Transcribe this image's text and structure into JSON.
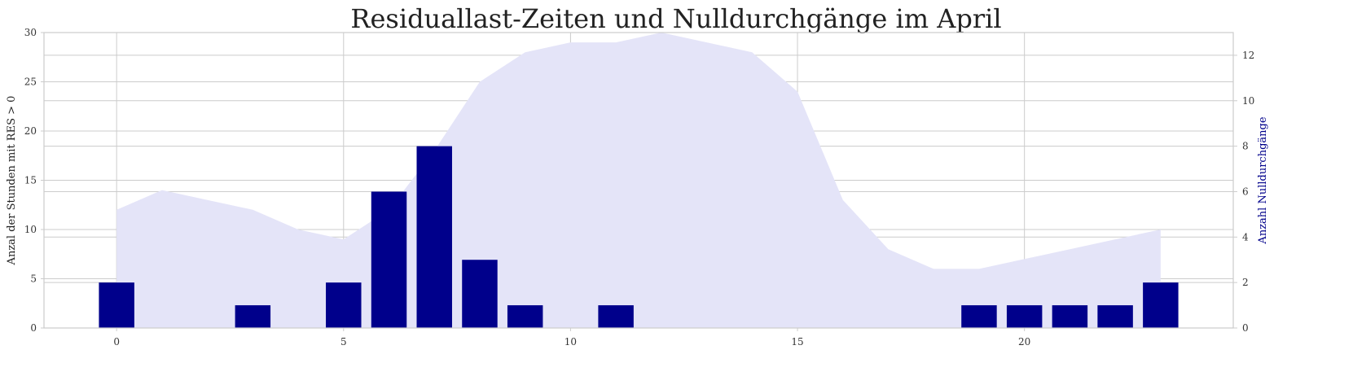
{
  "chart_data": {
    "type": "bar",
    "title": "Residuallast-Zeiten und Nulldurchgänge im April",
    "x": [
      0,
      1,
      2,
      3,
      4,
      5,
      6,
      7,
      8,
      9,
      10,
      11,
      12,
      13,
      14,
      15,
      16,
      17,
      18,
      19,
      20,
      21,
      22,
      23
    ],
    "xlim": [
      -1.6,
      24.6
    ],
    "xticks": [
      0,
      5,
      10,
      15,
      20
    ],
    "grid": true,
    "series": [
      {
        "axis": "left",
        "kind": "area",
        "ylabel": "Anzal der Stunden mit RES > 0",
        "color": "#e4e4f8",
        "values": [
          12,
          14,
          13,
          12,
          10,
          9,
          12,
          18,
          25,
          28,
          29,
          29,
          30,
          29,
          28,
          24,
          13,
          8,
          6,
          6,
          7,
          8,
          9,
          10
        ],
        "ylim": [
          0,
          30
        ],
        "yticks": [
          0,
          5,
          10,
          15,
          20,
          25,
          30
        ]
      },
      {
        "axis": "right",
        "kind": "bar",
        "ylabel": "Anzahl Nulldurchgänge",
        "color": "#00008b",
        "values": [
          2,
          0,
          0,
          1,
          0,
          2,
          6,
          8,
          3,
          1,
          0,
          1,
          0,
          0,
          0,
          0,
          0,
          0,
          0,
          1,
          1,
          1,
          1,
          2
        ],
        "ylim": [
          0,
          13
        ],
        "yticks": [
          0,
          2,
          4,
          6,
          8,
          10,
          12
        ]
      }
    ]
  }
}
